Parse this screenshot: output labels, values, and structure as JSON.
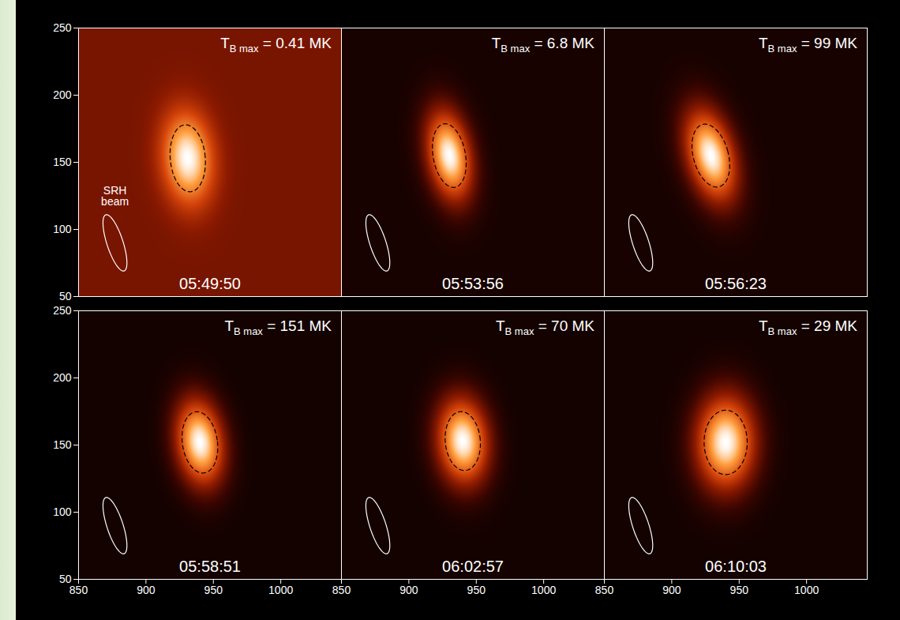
{
  "chart_data": {
    "type": "image_grid",
    "xlim": [
      850,
      1045
    ],
    "ylim": [
      50,
      250
    ],
    "xticks": [
      850,
      900,
      950,
      1000
    ],
    "yticks": [
      50,
      100,
      150,
      200,
      250
    ],
    "annotation": {
      "symbol": "T",
      "subscript": "B max",
      "relation": "=",
      "unit": "MK"
    },
    "beam": {
      "x": 877,
      "y": 90,
      "rx": 6,
      "ry": 22,
      "tilt": -18
    },
    "panels": [
      {
        "time": "05:49:50",
        "tb_max": 0.41,
        "background": 0.3,
        "beam_label": [
          "SRH",
          "beam"
        ],
        "source": {
          "x": 931,
          "y": 153,
          "sigma_x": 13,
          "sigma_y": 24,
          "tilt": -5
        },
        "contour": {
          "x": 931,
          "y": 153,
          "rx": 13,
          "ry": 25,
          "tilt": -5
        }
      },
      {
        "time": "05:53:56",
        "tb_max": 6.8,
        "background": 0.06,
        "source": {
          "x": 930,
          "y": 155,
          "sigma_x": 11,
          "sigma_y": 23,
          "tilt": -10
        },
        "contour": {
          "x": 930,
          "y": 155,
          "rx": 12,
          "ry": 24,
          "tilt": -10
        }
      },
      {
        "time": "05:56:23",
        "tb_max": 99,
        "background": 0.06,
        "source": {
          "x": 929,
          "y": 155,
          "sigma_x": 12,
          "sigma_y": 24,
          "tilt": -15
        },
        "contour": {
          "x": 929,
          "y": 155,
          "rx": 13,
          "ry": 24,
          "tilt": -15
        }
      },
      {
        "time": "05:58:51",
        "tb_max": 151,
        "background": 0.05,
        "source": {
          "x": 940,
          "y": 152,
          "sigma_x": 12,
          "sigma_y": 22,
          "tilt": -8
        },
        "contour": {
          "x": 940,
          "y": 152,
          "rx": 13,
          "ry": 23,
          "tilt": -8
        }
      },
      {
        "time": "06:02:57",
        "tb_max": 70,
        "background": 0.05,
        "source": {
          "x": 940,
          "y": 153,
          "sigma_x": 13,
          "sigma_y": 22,
          "tilt": -5
        },
        "contour": {
          "x": 940,
          "y": 153,
          "rx": 13,
          "ry": 22,
          "tilt": -5
        }
      },
      {
        "time": "06:10:03",
        "tb_max": 29,
        "background": 0.05,
        "source": {
          "x": 940,
          "y": 152,
          "sigma_x": 15,
          "sigma_y": 24,
          "tilt": 0
        },
        "contour": {
          "x": 940,
          "y": 152,
          "rx": 16,
          "ry": 24,
          "tilt": 0
        }
      }
    ]
  }
}
